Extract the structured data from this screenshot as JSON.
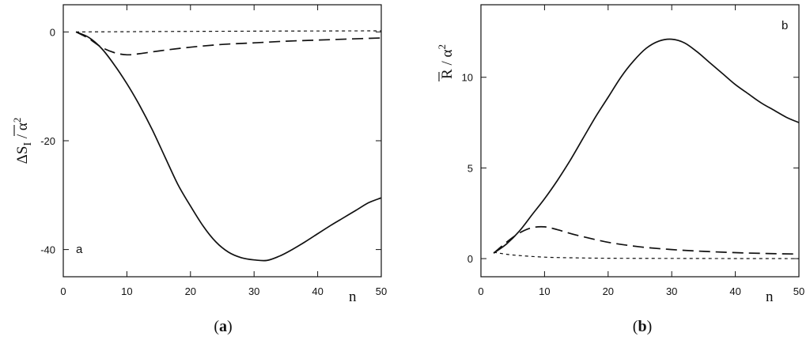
{
  "chart_data": [
    {
      "type": "line",
      "panel_label": "a",
      "caption_open": "(",
      "caption_letter": "a",
      "caption_close": ")",
      "xlabel": "n",
      "ylabel_main": "ΔS",
      "ylabel_sub": "I",
      "ylabel_rest": " / α",
      "ylabel_sup": "2",
      "xlim": [
        0,
        50
      ],
      "ylim": [
        -45,
        5
      ],
      "xticks": [
        0,
        10,
        20,
        30,
        40,
        50
      ],
      "yticks": [
        0,
        -20,
        -40
      ],
      "grid": false,
      "series": [
        {
          "style": "solid",
          "x": [
            2,
            4,
            6,
            8,
            10,
            12,
            14,
            16,
            18,
            20,
            22,
            24,
            26,
            28,
            30,
            32,
            34,
            36,
            38,
            40,
            42,
            44,
            46,
            48,
            50
          ],
          "y": [
            0,
            -1,
            -3,
            -6,
            -9.5,
            -13.5,
            -18,
            -23,
            -28,
            -32,
            -35.7,
            -38.6,
            -40.5,
            -41.5,
            -41.9,
            -42,
            -41.2,
            -40,
            -38.6,
            -37.1,
            -35.6,
            -34.2,
            -32.8,
            -31.4,
            -30.5
          ]
        },
        {
          "style": "long-dash",
          "x": [
            2,
            4,
            6,
            8,
            10,
            12,
            15,
            20,
            25,
            30,
            35,
            40,
            45,
            50
          ],
          "y": [
            0,
            -1.2,
            -2.8,
            -3.8,
            -4.2,
            -4.0,
            -3.5,
            -2.8,
            -2.3,
            -2.0,
            -1.7,
            -1.5,
            -1.3,
            -1.1
          ]
        },
        {
          "style": "short-dash",
          "x": [
            2,
            10,
            20,
            30,
            40,
            50
          ],
          "y": [
            0,
            0.05,
            0.1,
            0.15,
            0.18,
            0.2
          ]
        }
      ]
    },
    {
      "type": "line",
      "panel_label": "b",
      "caption_open": "(",
      "caption_letter": "b",
      "caption_close": ")",
      "xlabel": "n",
      "ylabel_main": "R",
      "ylabel_rest": " / α",
      "ylabel_sup": "2",
      "xlim": [
        0,
        50
      ],
      "ylim": [
        -1,
        14
      ],
      "xticks": [
        0,
        10,
        20,
        30,
        40,
        50
      ],
      "yticks": [
        0,
        5,
        10
      ],
      "grid": false,
      "series": [
        {
          "style": "solid",
          "x": [
            2,
            4,
            6,
            8,
            10,
            12,
            14,
            16,
            18,
            20,
            22,
            24,
            26,
            28,
            30,
            32,
            34,
            36,
            38,
            40,
            42,
            44,
            46,
            48,
            50
          ],
          "y": [
            0.3,
            0.8,
            1.5,
            2.4,
            3.3,
            4.3,
            5.4,
            6.6,
            7.8,
            8.9,
            10.0,
            10.9,
            11.6,
            12.0,
            12.1,
            11.9,
            11.4,
            10.8,
            10.2,
            9.6,
            9.1,
            8.6,
            8.2,
            7.8,
            7.5
          ]
        },
        {
          "style": "long-dash",
          "x": [
            2,
            4,
            6,
            8,
            10,
            12,
            15,
            20,
            25,
            30,
            35,
            40,
            45,
            50
          ],
          "y": [
            0.3,
            0.9,
            1.4,
            1.7,
            1.75,
            1.6,
            1.3,
            0.9,
            0.65,
            0.5,
            0.4,
            0.33,
            0.28,
            0.25
          ]
        },
        {
          "style": "short-dash",
          "x": [
            2,
            5,
            10,
            15,
            20,
            30,
            40,
            50
          ],
          "y": [
            0.35,
            0.2,
            0.08,
            0.04,
            0.02,
            0.01,
            0.005,
            0.0
          ]
        }
      ]
    }
  ]
}
